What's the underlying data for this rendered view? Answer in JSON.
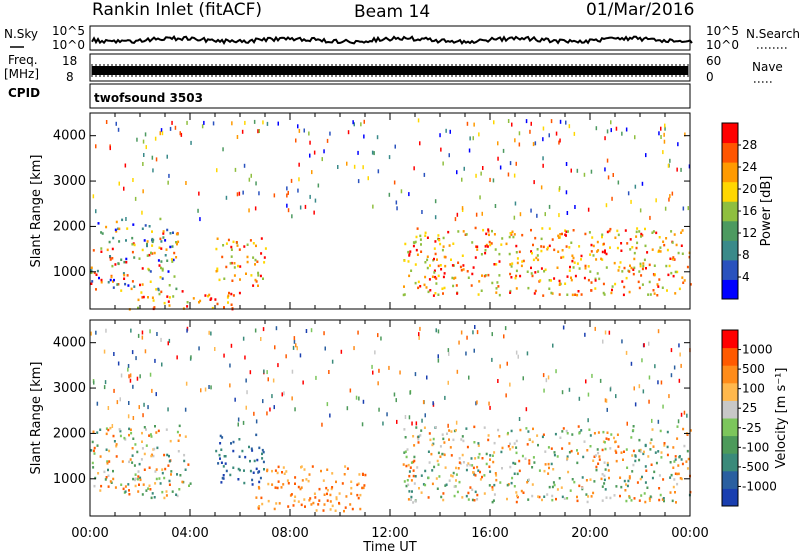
{
  "header": {
    "station": "Rankin Inlet (fitACF)",
    "beam": "Beam 14",
    "date": "01/Mar/2016"
  },
  "strip_panels": {
    "nsky_label": "N.Sky",
    "nsky_ticks": [
      "10^5",
      "10^0"
    ],
    "nsearch_label": "N.Search",
    "nsearch_ticks": [
      "10^5",
      "10^0"
    ],
    "freq_label_line1": "Freq.",
    "freq_label_line2": "[MHz]",
    "freq_ticks": [
      "18",
      "8"
    ],
    "nave_label": "Nave",
    "nave_ticks": [
      "60",
      "0"
    ],
    "cpid_label": "CPID",
    "cpid_value": "twofsound 3503"
  },
  "chart_data": [
    {
      "type": "heatmap",
      "name": "power",
      "ylabel": "Slant Range [km]",
      "xlabel": "",
      "x_ticks": [
        "00:00",
        "04:00",
        "08:00",
        "12:00",
        "16:00",
        "20:00",
        "00:00"
      ],
      "y_ticks": [
        1000,
        2000,
        3000,
        4000
      ],
      "ylim": [
        180,
        4500
      ],
      "xlim_hours": [
        0,
        24
      ],
      "colorbar": {
        "label": "Power [dB]",
        "ticks": [
          "28",
          "24",
          "20",
          "16",
          "12",
          "8",
          "4"
        ],
        "colors": [
          "#0000ff",
          "#2a52be",
          "#3a8a8a",
          "#4d9a60",
          "#8fbf3f",
          "#ffd700",
          "#ff9a00",
          "#ff5500",
          "#ff0000"
        ]
      },
      "echo_regions": [
        {
          "t0": 0.0,
          "t1": 3.5,
          "r0": 600,
          "r1": 2200,
          "level": "mixed"
        },
        {
          "t0": 5.0,
          "t1": 7.0,
          "r0": 700,
          "r1": 1800,
          "level": "strong"
        },
        {
          "t0": 1.5,
          "t1": 6.0,
          "r0": 200,
          "r1": 600,
          "level": "strong"
        },
        {
          "t0": 12.5,
          "t1": 24.0,
          "r0": 500,
          "r1": 2000,
          "level": "strong"
        }
      ]
    },
    {
      "type": "heatmap",
      "name": "velocity",
      "ylabel": "Slant Range [km]",
      "xlabel": "Time UT",
      "x_ticks": [
        "00:00",
        "04:00",
        "08:00",
        "12:00",
        "16:00",
        "20:00",
        "00:00"
      ],
      "y_ticks": [
        1000,
        2000,
        3000,
        4000
      ],
      "ylim": [
        180,
        4500
      ],
      "xlim_hours": [
        0,
        24
      ],
      "colorbar": {
        "label": "Velocity [m s⁻¹]",
        "ticks": [
          "1000",
          "500",
          "100",
          "25",
          "-25",
          "-100",
          "-500",
          "-1000"
        ],
        "colors": [
          "#1a3fb0",
          "#2a5fa0",
          "#3a8a7a",
          "#4c9a5a",
          "#7cc65c",
          "#c8c8c8",
          "#ffb84d",
          "#ff8c1a",
          "#ff5a00",
          "#ff0000"
        ]
      },
      "echo_regions": [
        {
          "t0": 0.0,
          "t1": 4.0,
          "r0": 600,
          "r1": 2200,
          "level": "mixed"
        },
        {
          "t0": 5.0,
          "t1": 7.0,
          "r0": 900,
          "r1": 2000,
          "level": "toward"
        },
        {
          "t0": 6.5,
          "t1": 11.0,
          "r0": 300,
          "r1": 1300,
          "level": "away"
        },
        {
          "t0": 12.5,
          "t1": 24.0,
          "r0": 500,
          "r1": 2200,
          "level": "mixed"
        }
      ]
    }
  ]
}
